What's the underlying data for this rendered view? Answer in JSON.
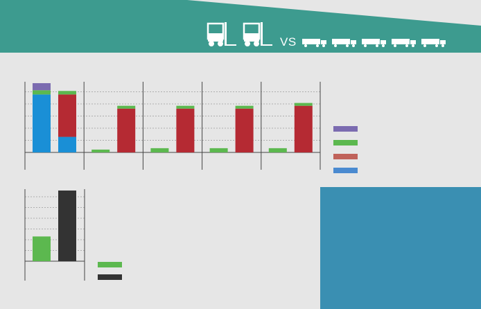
{
  "header": {
    "vs_label": "VS",
    "bg_color": "#3d9b8f",
    "forklift_icons": [
      "forklift-icon",
      "forklift-icon"
    ],
    "truck_icons": [
      "truck-icon",
      "truck-icon",
      "truck-icon",
      "truck-icon",
      "truck-icon"
    ]
  },
  "colors": {
    "purple": "#7b6bb0",
    "green": "#5cb84f",
    "red": "#b52a33",
    "blue": "#1a8fd6",
    "legend_red": "#c0625a",
    "legend_blue": "#4a8ad0",
    "black": "#333333",
    "teal_panel": "#3a8fb2"
  },
  "chart_data": [
    {
      "type": "bar",
      "stacked": true,
      "categories": [
        "",
        "",
        "",
        "",
        ""
      ],
      "ylim": [
        0,
        100
      ],
      "grid": true,
      "legend_position": "right",
      "series_order": [
        "blue",
        "red",
        "green",
        "purple"
      ],
      "bars": [
        {
          "blue": 82,
          "red": 0,
          "green": 6,
          "purple": 10
        },
        {
          "blue": 22,
          "red": 60,
          "green": 5,
          "purple": 0
        },
        {
          "blue": 0,
          "red": 0,
          "green": 4,
          "purple": 0
        },
        {
          "blue": 0,
          "red": 62,
          "green": 4,
          "purple": 0
        },
        {
          "blue": 0,
          "red": 0,
          "green": 6,
          "purple": 0
        },
        {
          "blue": 0,
          "red": 62,
          "green": 4,
          "purple": 0
        },
        {
          "blue": 0,
          "red": 0,
          "green": 6,
          "purple": 0
        },
        {
          "blue": 0,
          "red": 62,
          "green": 4,
          "purple": 0
        },
        {
          "blue": 0,
          "red": 0,
          "green": 6,
          "purple": 0
        },
        {
          "blue": 0,
          "red": 66,
          "green": 4,
          "purple": 0
        }
      ],
      "legend": [
        "purple",
        "green",
        "legend_red",
        "legend_blue"
      ]
    },
    {
      "type": "bar",
      "stacked": false,
      "categories": [
        "",
        ""
      ],
      "ylim": [
        0,
        100
      ],
      "grid": true,
      "legend_position": "bottom-right",
      "values": [
        35,
        100
      ],
      "value_colors": [
        "green",
        "black"
      ],
      "legend": [
        "green",
        "black"
      ]
    }
  ]
}
